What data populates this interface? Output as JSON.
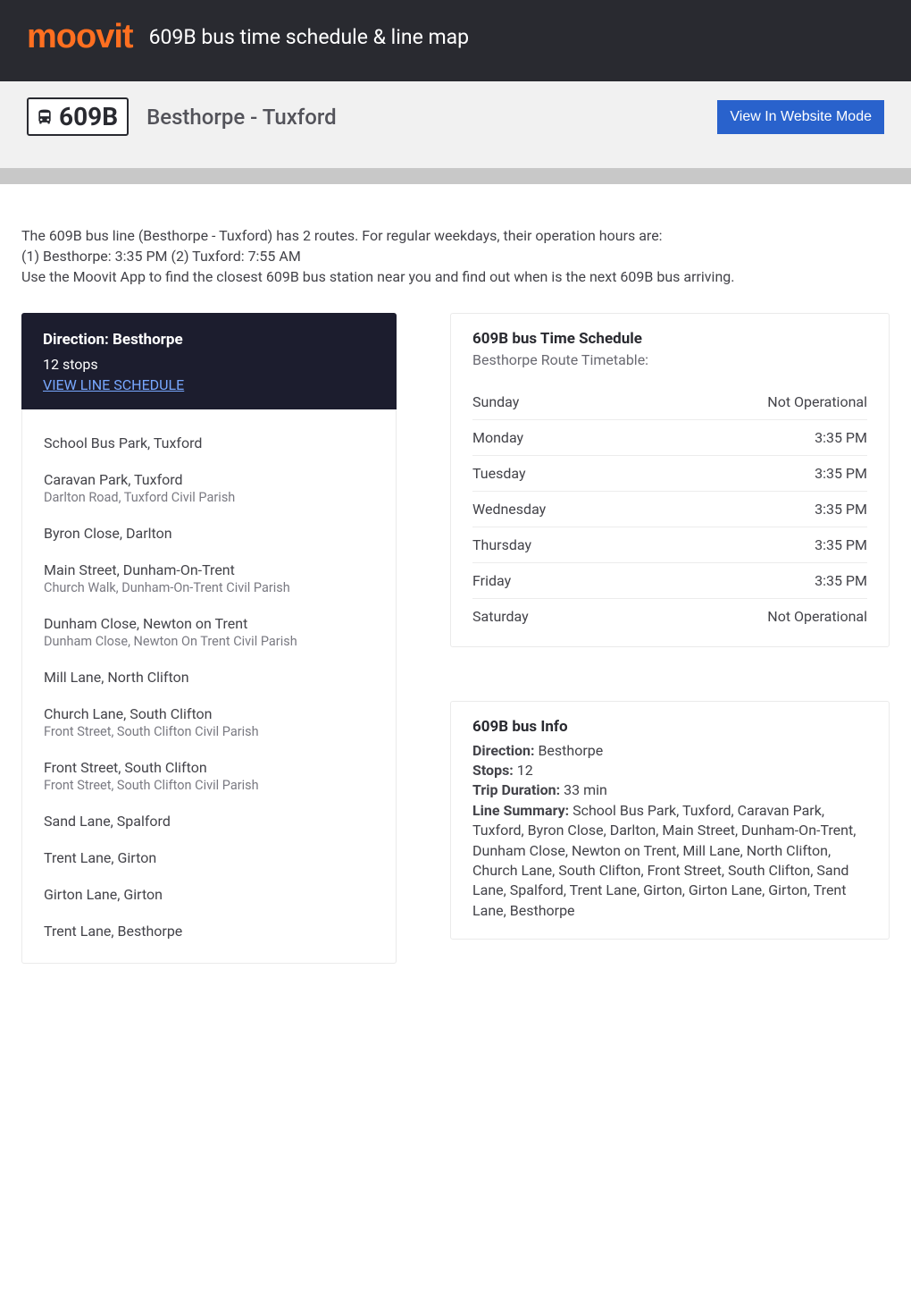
{
  "header": {
    "logo_text": "moov",
    "logo_suffix": "it",
    "title": "609B bus time schedule & line map"
  },
  "route_bar": {
    "number": "609B",
    "name": "Besthorpe - Tuxford",
    "website_button": "View In Website Mode"
  },
  "intro": "The 609B bus line (Besthorpe - Tuxford) has 2 routes. For regular weekdays, their operation hours are:\n(1) Besthorpe: 3:35 PM (2) Tuxford: 7:55 AM\nUse the Moovit App to find the closest 609B bus station near you and find out when is the next 609B bus arriving.",
  "direction_card": {
    "title": "Direction: Besthorpe",
    "stops_count": "12 stops",
    "link": "VIEW LINE SCHEDULE"
  },
  "stops": [
    {
      "name": "School Bus Park, Tuxford",
      "sub": ""
    },
    {
      "name": "Caravan Park, Tuxford",
      "sub": "Darlton Road, Tuxford Civil Parish"
    },
    {
      "name": "Byron Close, Darlton",
      "sub": ""
    },
    {
      "name": "Main Street, Dunham-On-Trent",
      "sub": "Church Walk, Dunham-On-Trent Civil Parish"
    },
    {
      "name": "Dunham Close, Newton on Trent",
      "sub": "Dunham Close, Newton On Trent Civil Parish"
    },
    {
      "name": "Mill Lane, North Clifton",
      "sub": ""
    },
    {
      "name": "Church Lane, South Clifton",
      "sub": "Front Street, South Clifton Civil Parish"
    },
    {
      "name": "Front Street, South Clifton",
      "sub": "Front Street, South Clifton Civil Parish"
    },
    {
      "name": "Sand Lane, Spalford",
      "sub": ""
    },
    {
      "name": "Trent Lane, Girton",
      "sub": ""
    },
    {
      "name": "Girton Lane, Girton",
      "sub": ""
    },
    {
      "name": "Trent Lane, Besthorpe",
      "sub": ""
    }
  ],
  "schedule": {
    "title": "609B bus Time Schedule",
    "subtitle": "Besthorpe Route Timetable:",
    "rows": [
      {
        "day": "Sunday",
        "time": "Not Operational"
      },
      {
        "day": "Monday",
        "time": "3:35 PM"
      },
      {
        "day": "Tuesday",
        "time": "3:35 PM"
      },
      {
        "day": "Wednesday",
        "time": "3:35 PM"
      },
      {
        "day": "Thursday",
        "time": "3:35 PM"
      },
      {
        "day": "Friday",
        "time": "3:35 PM"
      },
      {
        "day": "Saturday",
        "time": "Not Operational"
      }
    ]
  },
  "info": {
    "title": "609B bus Info",
    "direction_label": "Direction:",
    "direction_value": " Besthorpe",
    "stops_label": "Stops:",
    "stops_value": " 12",
    "duration_label": "Trip Duration:",
    "duration_value": " 33 min",
    "summary_label": "Line Summary:",
    "summary_value": " School Bus Park, Tuxford, Caravan Park, Tuxford, Byron Close, Darlton, Main Street, Dunham-On-Trent, Dunham Close, Newton on Trent, Mill Lane, North Clifton, Church Lane, South Clifton, Front Street, South Clifton, Sand Lane, Spalford, Trent Lane, Girton, Girton Lane, Girton, Trent Lane, Besthorpe"
  },
  "colors": {
    "brand_orange": "#ff6f20",
    "dark_header": "#292a30",
    "dark_card": "#1c1d2e",
    "link_blue": "#78a8ff",
    "button_blue": "#2962cc",
    "text_body": "#434349",
    "text_muted": "#7a7a82",
    "border": "#eaeaea"
  }
}
